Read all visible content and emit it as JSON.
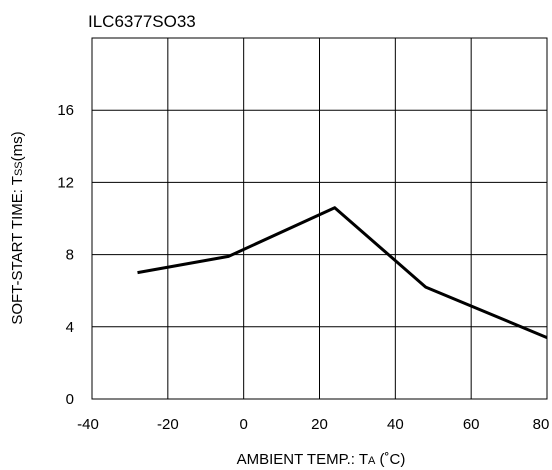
{
  "chart_data": {
    "type": "line",
    "title": "ILC6377SO33",
    "xlabel": {
      "main": "AMBIENT TEMP.: T",
      "sub": "A",
      "unit": " (˚C)"
    },
    "ylabel": {
      "main": "SOFT-START TIME: T",
      "sub": "SS",
      "unit": "(ms)"
    },
    "xlim": [
      -40,
      80
    ],
    "ylim": [
      0,
      20
    ],
    "x_ticks": [
      -40,
      -20,
      0,
      20,
      40,
      60,
      80
    ],
    "y_ticks": [
      0,
      4,
      8,
      12,
      16
    ],
    "x_tick_labels": [
      "-40",
      "-20",
      "0",
      "20",
      "40",
      "60",
      "80"
    ],
    "y_tick_labels": [
      "0",
      "4",
      "8",
      "12",
      "16"
    ],
    "grid": true,
    "line_color": "#000000",
    "series": [
      {
        "x": [
          -28,
          -4,
          24,
          48,
          80
        ],
        "y": [
          7.0,
          7.9,
          10.6,
          6.2,
          3.4
        ]
      }
    ]
  }
}
